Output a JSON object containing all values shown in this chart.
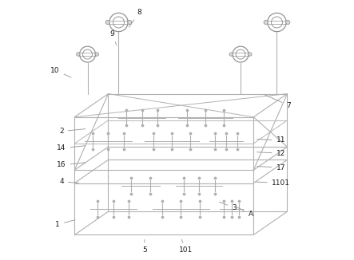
{
  "bg_color": "#ffffff",
  "line_color": "#b0b0b0",
  "line_color_dark": "#909090",
  "line_width": 0.8,
  "figsize": [
    4.43,
    3.26
  ],
  "dpi": 100,
  "label_positions": {
    "8": [
      0.355,
      0.955,
      0.31,
      0.89
    ],
    "9": [
      0.25,
      0.87,
      0.27,
      0.82
    ],
    "10": [
      0.03,
      0.73,
      0.1,
      0.7
    ],
    "7": [
      0.93,
      0.595,
      0.83,
      0.64
    ],
    "2": [
      0.055,
      0.495,
      0.155,
      0.505
    ],
    "14": [
      0.055,
      0.43,
      0.155,
      0.44
    ],
    "16": [
      0.055,
      0.365,
      0.155,
      0.375
    ],
    "4": [
      0.055,
      0.3,
      0.13,
      0.295
    ],
    "11": [
      0.9,
      0.46,
      0.8,
      0.465
    ],
    "12": [
      0.9,
      0.41,
      0.8,
      0.415
    ],
    "17": [
      0.9,
      0.355,
      0.8,
      0.36
    ],
    "1101": [
      0.9,
      0.295,
      0.795,
      0.3
    ],
    "1": [
      0.04,
      0.135,
      0.115,
      0.155
    ],
    "3": [
      0.72,
      0.2,
      0.655,
      0.225
    ],
    "5": [
      0.375,
      0.035,
      0.375,
      0.085
    ],
    "101": [
      0.535,
      0.035,
      0.515,
      0.085
    ],
    "A": [
      0.785,
      0.175,
      0.725,
      0.205
    ]
  }
}
